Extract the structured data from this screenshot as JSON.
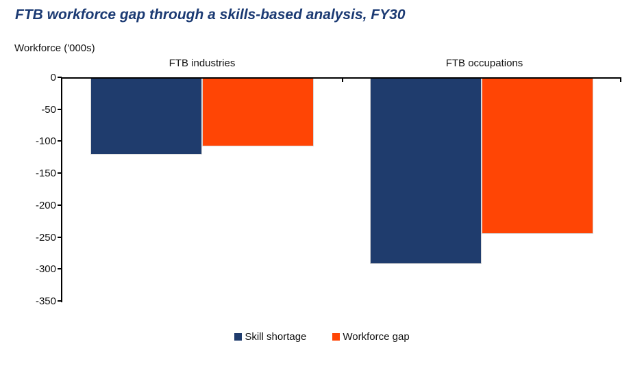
{
  "title": "FTB workforce gap through a skills-based analysis, FY30",
  "y_axis_caption": "Workforce ('000s)",
  "chart_data": {
    "type": "bar",
    "orientation": "vertical",
    "title": "FTB workforce gap through a skills-based analysis, FY30",
    "ylabel": "Workforce ('000s)",
    "xlabel": "",
    "categories": [
      "FTB industries",
      "FTB occupations"
    ],
    "series": [
      {
        "name": "Skill shortage",
        "color": "#1F3C6D",
        "values": [
          -120,
          -291
        ]
      },
      {
        "name": "Workforce gap",
        "color": "#FF4505",
        "values": [
          -107,
          -244
        ]
      }
    ],
    "ylim": [
      -350,
      0
    ],
    "yticks": [
      0,
      -50,
      -100,
      -150,
      -200,
      -250,
      -300,
      -350
    ],
    "grid": false,
    "legend_position": "bottom"
  },
  "colors": {
    "title": "#1B3A73",
    "skill_shortage": "#1F3C6D",
    "workforce_gap": "#FF4505",
    "axis": "#000000"
  }
}
